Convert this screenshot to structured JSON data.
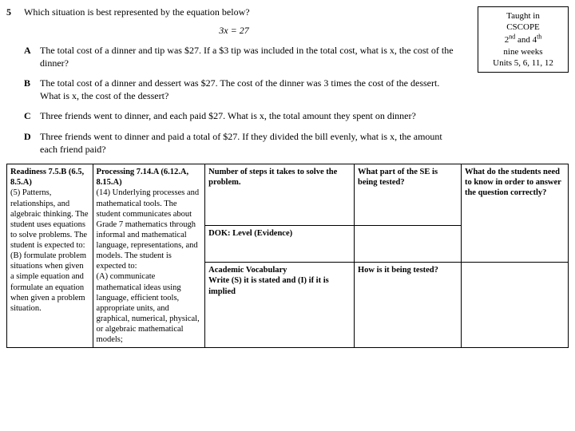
{
  "question": {
    "number": "5",
    "prompt": "Which situation is best represented by the equation below?",
    "equation": "3x = 27",
    "choices": [
      {
        "label": "A",
        "text": "The total cost of a dinner and tip was $27. If a $3 tip was included in the total cost, what is x, the cost of the dinner?"
      },
      {
        "label": "B",
        "text": "The total cost of a dinner and dessert was $27. The cost of the dinner was 3 times the cost of the dessert. What is x, the cost of the dessert?"
      },
      {
        "label": "C",
        "text": "Three friends went to dinner, and each paid $27. What is x, the total amount they spent on dinner?"
      },
      {
        "label": "D",
        "text": "Three friends went to dinner and paid a total of $27. If they divided the bill evenly, what is x, the amount each friend paid?"
      }
    ]
  },
  "taught_box": {
    "line1": "Taught in",
    "line2": "CSCOPE",
    "line3_pre": "2",
    "line3_sup1": "nd",
    "line3_mid": " and 4",
    "line3_sup2": "th",
    "line4": "nine weeks",
    "line5": "Units 5, 6, 11, 12"
  },
  "analysis": {
    "col1_title": "Readiness 7.5.B (6.5, 8.5.A)",
    "col1_body": "(5) Patterns, relationships, and algebraic thinking. The student uses equations to solve problems. The student is expected to:\n(B) formulate problem situations when given a simple equation and formulate an equation when given a problem situation.",
    "col2_title": "Processing 7.14.A (6.12.A, 8.15.A)",
    "col2_body": "(14) Underlying processes and mathematical tools. The student communicates about Grade 7 mathematics through informal and mathematical language, representations, and models. The student is expected to:\n(A) communicate mathematical ideas using language, efficient tools, appropriate units, and graphical, numerical, physical, or algebraic mathematical models;",
    "r1c3": "Number of steps it takes to solve the problem.",
    "r1c4": "What part of the SE is being tested?",
    "r1c5": "What do the students need to know in order to answer the question correctly?",
    "r2c3": "DOK: Level (Evidence)",
    "r3c3": "Academic Vocabulary\nWrite (S) it is stated and (I) if it is implied",
    "r3c4": "How is it being tested?"
  }
}
